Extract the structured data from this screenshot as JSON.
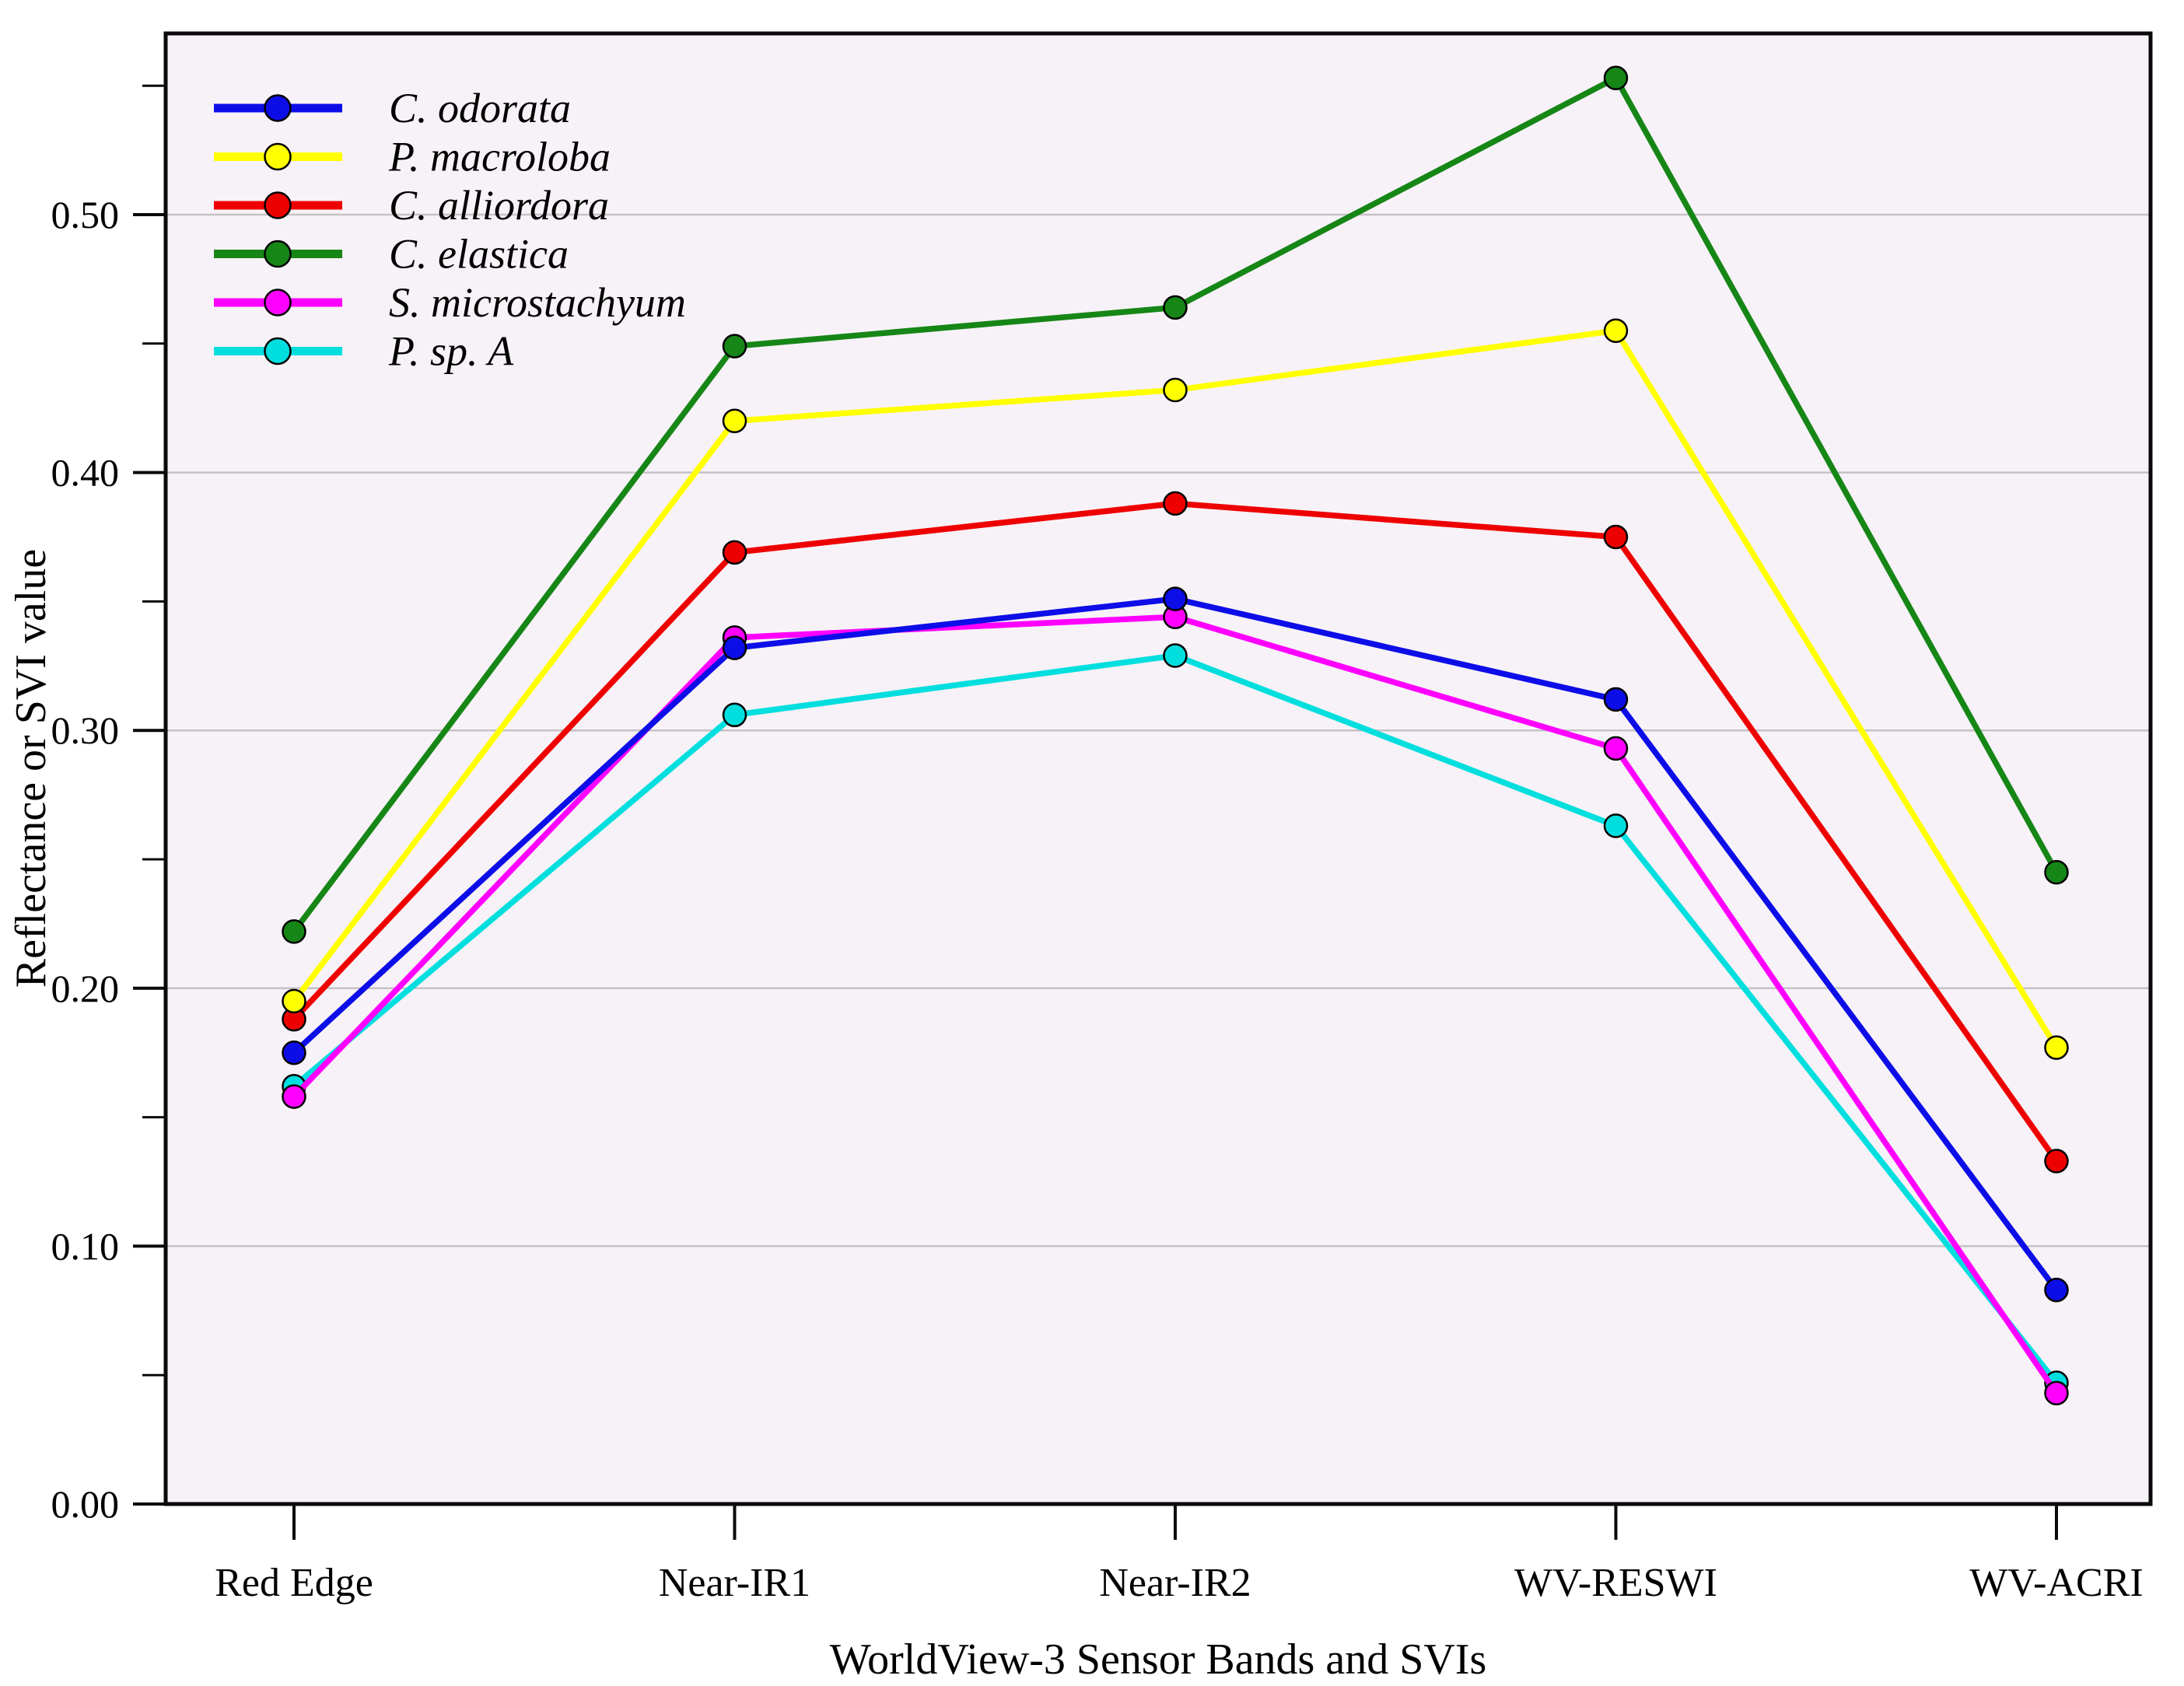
{
  "chart_data": {
    "type": "line",
    "title": "",
    "xlabel": "WorldView-3 Sensor Bands and SVIs",
    "ylabel": "Reflectance or SVI value",
    "categories": [
      "Red Edge",
      "Near-IR1",
      "Near-IR2",
      "WV-RESWI",
      "WV-ACRI"
    ],
    "series": [
      {
        "name": "C. odorata",
        "color": "#0d0de8",
        "values": [
          0.175,
          0.332,
          0.351,
          0.312,
          0.083
        ]
      },
      {
        "name": "P. macroloba",
        "color": "#ffff00",
        "values": [
          0.195,
          0.42,
          0.432,
          0.455,
          0.177
        ]
      },
      {
        "name": "C. alliordora",
        "color": "#ee0000",
        "values": [
          0.188,
          0.369,
          0.388,
          0.375,
          0.133
        ]
      },
      {
        "name": "C. elastica",
        "color": "#168616",
        "values": [
          0.222,
          0.449,
          0.464,
          0.553,
          0.245
        ]
      },
      {
        "name": "S. microstachyum",
        "color": "#ff00ff",
        "values": [
          0.158,
          0.336,
          0.344,
          0.293,
          0.043
        ]
      },
      {
        "name": "P. sp. A",
        "color": "#00dede",
        "values": [
          0.162,
          0.306,
          0.329,
          0.263,
          0.047
        ]
      }
    ],
    "ylim": [
      0.0,
      0.5703
    ],
    "ytick_labels": [
      "0.00",
      "0.10",
      "0.20",
      "0.30",
      "0.40",
      "0.50"
    ],
    "ytick_values": [
      0.0,
      0.1,
      0.2,
      0.3,
      0.4,
      0.5
    ],
    "yminor_values": [
      0.05,
      0.15,
      0.25,
      0.35,
      0.45,
      0.55
    ],
    "grid": true,
    "legend_position": "top-left",
    "marker": "circle",
    "colors": {
      "plot_background": "#f7f2f7",
      "grid_line": "#c6c2c6",
      "frame": "#0a0a0a",
      "text": "#000000",
      "marker_outline": "#000000"
    }
  }
}
